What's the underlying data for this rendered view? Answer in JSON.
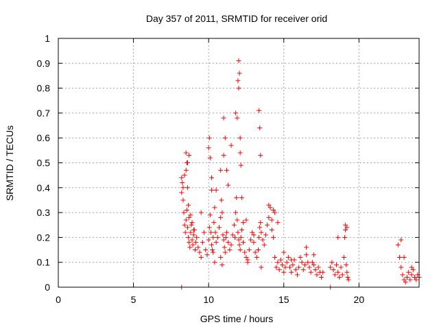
{
  "chart_data": {
    "type": "scatter",
    "title": "Day 357 of 2011, SRMTID for receiver orid",
    "xlabel": "GPS time / hours",
    "ylabel": "SRMTID / TECUs",
    "xlim": [
      0,
      24
    ],
    "ylim": [
      0,
      1
    ],
    "xticks": [
      "0",
      "5",
      "10",
      "15",
      "20"
    ],
    "yticks": [
      "0",
      "0.1",
      "0.2",
      "0.3",
      "0.4",
      "0.5",
      "0.6",
      "0.7",
      "0.8",
      "0.9",
      "1"
    ],
    "grid": true,
    "marker": "plus",
    "series_color": "#ff0000",
    "series": [
      {
        "name": "SRMTID",
        "x": [
          8.2,
          8.25,
          8.3,
          8.35,
          8.4,
          8.45,
          8.5,
          8.55,
          8.6,
          8.65,
          8.7,
          8.75,
          8.8,
          8.85,
          8.9,
          8.95,
          9.0,
          9.05,
          9.1,
          9.15,
          9.2,
          9.3,
          9.4,
          9.5,
          9.6,
          9.7,
          9.8,
          9.9,
          10.0,
          10.05,
          10.1,
          10.15,
          10.2,
          10.25,
          10.3,
          10.35,
          10.4,
          10.45,
          10.5,
          10.6,
          10.7,
          10.8,
          10.85,
          10.9,
          10.95,
          11.0,
          11.05,
          11.1,
          11.15,
          11.2,
          11.3,
          11.4,
          11.5,
          11.6,
          11.7,
          11.75,
          11.8,
          11.85,
          11.9,
          11.95,
          12.0,
          12.05,
          12.1,
          12.15,
          12.2,
          12.3,
          12.4,
          12.5,
          12.6,
          12.7,
          12.8,
          12.9,
          13.0,
          13.1,
          13.2,
          13.3,
          13.35,
          13.4,
          13.45,
          13.5,
          13.6,
          13.7,
          13.8,
          13.9,
          14.0,
          14.1,
          14.2,
          14.3,
          14.4,
          14.5,
          14.6,
          14.7,
          14.8,
          14.9,
          15.0,
          15.1,
          15.2,
          15.3,
          15.4,
          15.5,
          15.6,
          15.7,
          15.8,
          15.9,
          16.0,
          16.1,
          16.2,
          16.3,
          16.4,
          16.5,
          16.6,
          16.7,
          16.8,
          16.9,
          17.0,
          17.1,
          17.2,
          17.3,
          17.4,
          17.5,
          17.6,
          18.1,
          18.2,
          18.3,
          18.4,
          18.5,
          18.6,
          18.7,
          18.8,
          18.9,
          19.0,
          19.05,
          19.1,
          19.15,
          19.2,
          19.25,
          19.3,
          22.6,
          22.7,
          22.8,
          22.9,
          23.0,
          23.1,
          23.2,
          23.3,
          23.4,
          23.5,
          23.6,
          23.7,
          23.8,
          23.9,
          24.0,
          8.2,
          8.3,
          8.4,
          8.5,
          8.6,
          8.7,
          8.8,
          8.9,
          9.0,
          9.5,
          10.0,
          10.2,
          10.5,
          10.8,
          11.0,
          11.5,
          11.8,
          11.9,
          11.95,
          12.0,
          12.05,
          12.1,
          12.5,
          13.0,
          13.35,
          13.4,
          13.45,
          14.0,
          14.3,
          14.6,
          15.0,
          15.5,
          16.5,
          17.0,
          18.6,
          19.1,
          19.2,
          22.8,
          23.0,
          23.5,
          10.05,
          10.1,
          10.2,
          11.0,
          11.1,
          11.2,
          11.3,
          12.0,
          12.1,
          12.15,
          12.2,
          8.5,
          8.55,
          8.6,
          8.65,
          8.7,
          10.3,
          10.4,
          10.8,
          10.9,
          12.3,
          12.6,
          13.5,
          14.2,
          14.4,
          8.2,
          18.1
        ],
        "y": [
          0.38,
          0.42,
          0.35,
          0.3,
          0.25,
          0.22,
          0.27,
          0.31,
          0.24,
          0.2,
          0.18,
          0.16,
          0.22,
          0.25,
          0.19,
          0.17,
          0.21,
          0.23,
          0.15,
          0.18,
          0.2,
          0.16,
          0.14,
          0.12,
          0.18,
          0.22,
          0.15,
          0.13,
          0.19,
          0.24,
          0.29,
          0.22,
          0.17,
          0.15,
          0.2,
          0.26,
          0.32,
          0.22,
          0.18,
          0.2,
          0.24,
          0.28,
          0.35,
          0.3,
          0.21,
          0.19,
          0.16,
          0.14,
          0.2,
          0.22,
          0.18,
          0.15,
          0.17,
          0.21,
          0.25,
          0.2,
          0.3,
          0.36,
          0.27,
          0.22,
          0.19,
          0.17,
          0.15,
          0.2,
          0.23,
          0.18,
          0.14,
          0.12,
          0.11,
          0.15,
          0.19,
          0.22,
          0.18,
          0.14,
          0.12,
          0.15,
          0.2,
          0.24,
          0.26,
          0.22,
          0.19,
          0.17,
          0.21,
          0.25,
          0.28,
          0.32,
          0.27,
          0.2,
          0.12,
          0.08,
          0.1,
          0.07,
          0.11,
          0.09,
          0.06,
          0.08,
          0.1,
          0.12,
          0.08,
          0.06,
          0.09,
          0.11,
          0.07,
          0.05,
          0.08,
          0.12,
          0.1,
          0.07,
          0.09,
          0.13,
          0.1,
          0.08,
          0.06,
          0.1,
          0.09,
          0.07,
          0.05,
          0.08,
          0.06,
          0.04,
          0.06,
          0.08,
          0.1,
          0.07,
          0.05,
          0.09,
          0.06,
          0.04,
          0.08,
          0.05,
          0.12,
          0.2,
          0.23,
          0.09,
          0.06,
          0.04,
          0.03,
          0.17,
          0.12,
          0.08,
          0.05,
          0.03,
          0.02,
          0.04,
          0.06,
          0.03,
          0.05,
          0.07,
          0.04,
          0.03,
          0.05,
          0.04,
          0.44,
          0.4,
          0.45,
          0.47,
          0.5,
          0.53,
          0.29,
          0.26,
          0.23,
          0.3,
          0.56,
          0.44,
          0.39,
          0.47,
          0.53,
          0.57,
          0.7,
          0.68,
          0.83,
          0.91,
          0.86,
          0.6,
          0.27,
          0.21,
          0.71,
          0.64,
          0.53,
          0.33,
          0.31,
          0.26,
          0.14,
          0.11,
          0.16,
          0.13,
          0.2,
          0.25,
          0.24,
          0.19,
          0.12,
          0.08,
          0.6,
          0.52,
          0.39,
          0.68,
          0.6,
          0.47,
          0.41,
          0.8,
          0.54,
          0.49,
          0.36,
          0.54,
          0.5,
          0.4,
          0.33,
          0.28,
          0.14,
          0.1,
          0.12,
          0.09,
          0.26,
          0.1,
          0.08,
          0.23,
          0.3,
          0.0,
          0.0
        ]
      }
    ]
  }
}
